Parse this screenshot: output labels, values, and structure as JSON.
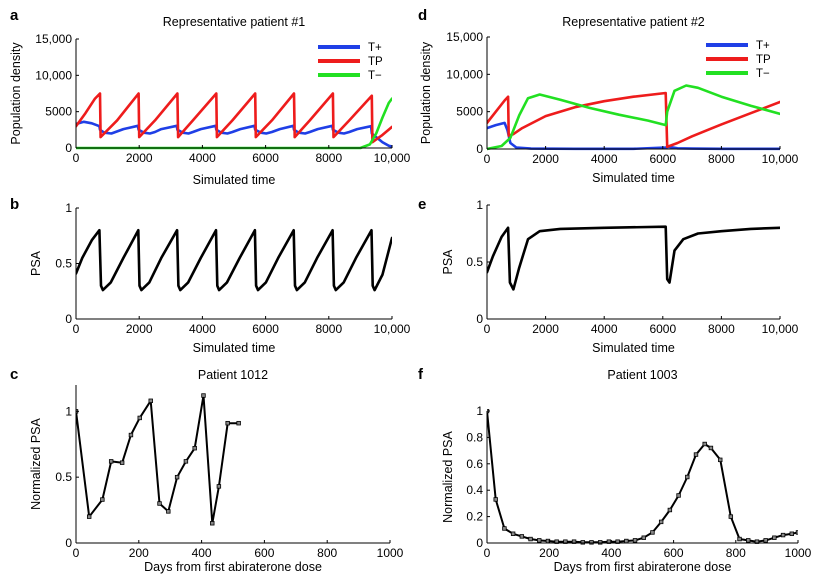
{
  "chart_data": [
    {
      "panel": "a",
      "type": "line",
      "title": "Representative patient #1",
      "xlabel": "Simulated time",
      "ylabel": "Population density",
      "xlim": [
        0,
        10000
      ],
      "ylim": [
        0,
        15000
      ],
      "xticks": [
        0,
        2000,
        4000,
        6000,
        8000,
        10000
      ],
      "xtick_labels": [
        "0",
        "2000",
        "4000",
        "6000",
        "8000",
        "10,000"
      ],
      "yticks": [
        0,
        5000,
        10000,
        15000
      ],
      "ytick_labels": [
        "0",
        "5000",
        "10,000",
        "15,000"
      ],
      "legend": "top-right",
      "series": [
        {
          "name": "T+",
          "color": "#1f3fe6",
          "x": [
            0,
            250,
            500,
            740,
            760,
            900,
            1120,
            1250,
            1500,
            1960,
            1980,
            2150,
            2340,
            2500,
            2700,
            3190,
            3210,
            3380,
            3560,
            3700,
            3950,
            4420,
            4440,
            4600,
            4790,
            4950,
            5200,
            5650,
            5670,
            5850,
            6020,
            6200,
            6450,
            6880,
            6900,
            7050,
            7250,
            7400,
            7650,
            8110,
            8130,
            8300,
            8480,
            8650,
            8900,
            9340,
            9360,
            9500,
            9700,
            9900,
            10000
          ],
          "y": [
            3300,
            3600,
            3400,
            3000,
            2500,
            2100,
            2000,
            2200,
            2600,
            3050,
            2500,
            2100,
            2000,
            2200,
            2600,
            3050,
            2500,
            2100,
            2000,
            2200,
            2600,
            3050,
            2500,
            2100,
            2000,
            2200,
            2600,
            3050,
            2500,
            2100,
            2000,
            2200,
            2600,
            3050,
            2500,
            2100,
            2000,
            2200,
            2600,
            3050,
            2500,
            2100,
            2000,
            2200,
            2600,
            3000,
            2000,
            1500,
            800,
            300,
            200
          ]
        },
        {
          "name": "TP",
          "color": "#ee1c1c",
          "x": [
            0,
            300,
            600,
            760,
            780,
            1300,
            1980,
            2000,
            2500,
            3210,
            3230,
            3700,
            4440,
            4460,
            4950,
            5670,
            5690,
            6200,
            6900,
            6920,
            7400,
            8130,
            8150,
            8650,
            9360,
            9380,
            9700,
            10000
          ],
          "y": [
            3000,
            4800,
            6800,
            7500,
            1500,
            3800,
            7500,
            1500,
            3800,
            7500,
            1500,
            3800,
            7500,
            1500,
            3800,
            7500,
            1500,
            3800,
            7500,
            1500,
            3800,
            7500,
            1500,
            3800,
            7200,
            800,
            1800,
            2900
          ]
        },
        {
          "name": "T−",
          "color": "#22e022",
          "x": [
            0,
            9000,
            9300,
            9500,
            9700,
            9900,
            10000
          ],
          "y": [
            0,
            0,
            500,
            2000,
            4200,
            6200,
            6800
          ]
        }
      ]
    },
    {
      "panel": "d",
      "type": "line",
      "title": "Representative patient #2",
      "xlabel": "Simulated time",
      "ylabel": "Population density",
      "xlim": [
        0,
        10000
      ],
      "ylim": [
        0,
        15000
      ],
      "xticks": [
        0,
        2000,
        4000,
        6000,
        8000,
        10000
      ],
      "xtick_labels": [
        "0",
        "2000",
        "4000",
        "6000",
        "8000",
        "10,000"
      ],
      "yticks": [
        0,
        5000,
        10000,
        15000
      ],
      "ytick_labels": [
        "0",
        "5000",
        "10,000",
        "15,000"
      ],
      "legend": "top-right",
      "series": [
        {
          "name": "T+",
          "color": "#1f3fe6",
          "x": [
            0,
            300,
            600,
            700,
            800,
            1000,
            1500,
            3000,
            5000,
            6100,
            6200,
            6500,
            7000,
            8000,
            10000
          ],
          "y": [
            2800,
            3200,
            3500,
            2500,
            800,
            200,
            50,
            30,
            30,
            200,
            300,
            100,
            50,
            30,
            30
          ]
        },
        {
          "name": "TP",
          "color": "#ee1c1c",
          "x": [
            0,
            300,
            600,
            720,
            740,
            900,
            1200,
            2000,
            3000,
            4000,
            5000,
            6100,
            6150,
            6500,
            7000,
            8000,
            9000,
            10000
          ],
          "y": [
            3500,
            5000,
            6500,
            7000,
            1800,
            2000,
            2800,
            4400,
            5600,
            6400,
            7000,
            7500,
            300,
            800,
            1700,
            3300,
            4800,
            6300
          ]
        },
        {
          "name": "T−",
          "color": "#22e022",
          "x": [
            0,
            500,
            800,
            1100,
            1400,
            1800,
            2500,
            3500,
            4500,
            5500,
            6100,
            6150,
            6400,
            6800,
            7200,
            8000,
            9000,
            10000
          ],
          "y": [
            0,
            400,
            1500,
            4500,
            6800,
            7300,
            6600,
            5500,
            4600,
            3800,
            3200,
            5000,
            7800,
            8500,
            8200,
            7000,
            5800,
            4700
          ]
        }
      ]
    },
    {
      "panel": "b",
      "type": "line",
      "title": "",
      "xlabel": "Simulated time",
      "ylabel": "PSA",
      "xlim": [
        0,
        10000
      ],
      "ylim": [
        0,
        1
      ],
      "xticks": [
        0,
        2000,
        4000,
        6000,
        8000,
        10000
      ],
      "xtick_labels": [
        "0",
        "2000",
        "4000",
        "6000",
        "8000",
        "10,000"
      ],
      "yticks": [
        0,
        0.5,
        1
      ],
      "ytick_labels": [
        "0",
        "0.5",
        "1"
      ],
      "series": [
        {
          "name": "",
          "color": "#000000",
          "x": [
            0,
            200,
            500,
            740,
            790,
            850,
            1100,
            1500,
            1970,
            2010,
            2070,
            2320,
            2700,
            3200,
            3240,
            3300,
            3550,
            3950,
            4430,
            4470,
            4530,
            4780,
            5180,
            5660,
            5700,
            5760,
            6010,
            6400,
            6890,
            6930,
            6990,
            7240,
            7630,
            8120,
            8160,
            8220,
            8470,
            8860,
            9350,
            9390,
            9450,
            9700,
            10000
          ],
          "y": [
            0.41,
            0.55,
            0.71,
            0.8,
            0.3,
            0.26,
            0.33,
            0.55,
            0.8,
            0.3,
            0.26,
            0.33,
            0.55,
            0.8,
            0.3,
            0.26,
            0.33,
            0.55,
            0.8,
            0.3,
            0.26,
            0.33,
            0.55,
            0.8,
            0.3,
            0.26,
            0.33,
            0.55,
            0.8,
            0.3,
            0.26,
            0.33,
            0.55,
            0.8,
            0.3,
            0.26,
            0.33,
            0.55,
            0.8,
            0.3,
            0.26,
            0.4,
            0.73
          ]
        }
      ]
    },
    {
      "panel": "e",
      "type": "line",
      "title": "",
      "xlabel": "Simulated time",
      "ylabel": "PSA",
      "xlim": [
        0,
        10000
      ],
      "ylim": [
        0,
        1
      ],
      "xticks": [
        0,
        2000,
        4000,
        6000,
        8000,
        10000
      ],
      "xtick_labels": [
        "0",
        "2000",
        "4000",
        "6000",
        "8000",
        "10,000"
      ],
      "yticks": [
        0,
        0.5,
        1
      ],
      "ytick_labels": [
        "0",
        "0.5",
        "1"
      ],
      "series": [
        {
          "name": "",
          "color": "#000000",
          "x": [
            0,
            200,
            500,
            720,
            780,
            900,
            1100,
            1400,
            1800,
            2500,
            4000,
            6100,
            6150,
            6230,
            6400,
            6700,
            7200,
            8000,
            9000,
            10000
          ],
          "y": [
            0.41,
            0.55,
            0.72,
            0.8,
            0.32,
            0.26,
            0.45,
            0.7,
            0.77,
            0.79,
            0.8,
            0.81,
            0.35,
            0.32,
            0.6,
            0.7,
            0.75,
            0.77,
            0.79,
            0.8
          ]
        }
      ]
    },
    {
      "panel": "c",
      "type": "line",
      "title": "Patient 1012",
      "xlabel": "Days from first abiraterone dose",
      "ylabel": "Normalized PSA",
      "xlim": [
        0,
        1000
      ],
      "ylim": [
        0,
        1.2
      ],
      "xticks": [
        0,
        200,
        400,
        600,
        800,
        1000
      ],
      "xtick_labels": [
        "0",
        "200",
        "400",
        "600",
        "800",
        "1000"
      ],
      "yticks": [
        0,
        0.5,
        1
      ],
      "ytick_labels": [
        "0",
        "0.5",
        "1"
      ],
      "series": [
        {
          "name": "",
          "color": "#000000",
          "x": [
            0,
            42,
            84,
            112,
            147,
            175,
            203,
            238,
            266,
            294,
            322,
            350,
            378,
            406,
            434,
            455,
            483,
            518
          ],
          "y": [
            1.0,
            0.2,
            0.33,
            0.62,
            0.61,
            0.82,
            0.95,
            1.08,
            0.3,
            0.24,
            0.5,
            0.62,
            0.72,
            1.12,
            0.15,
            0.43,
            0.91,
            0.91
          ]
        }
      ]
    },
    {
      "panel": "f",
      "type": "line",
      "title": "Patient 1003",
      "xlabel": "Days from first abiraterone dose",
      "ylabel": "Normalized PSA",
      "xlim": [
        0,
        1000
      ],
      "ylim": [
        0,
        1
      ],
      "xticks": [
        0,
        200,
        400,
        600,
        800,
        1000
      ],
      "xtick_labels": [
        "0",
        "200",
        "400",
        "600",
        "800",
        "1000"
      ],
      "yticks": [
        0,
        0.2,
        0.4,
        0.6,
        0.8,
        1
      ],
      "ytick_labels": [
        "0",
        "0.2",
        "0.4",
        "0.6",
        "0.8",
        "1"
      ],
      "series": [
        {
          "name": "",
          "color": "#000000",
          "x": [
            0,
            28,
            56,
            84,
            112,
            140,
            168,
            196,
            224,
            252,
            280,
            308,
            336,
            364,
            392,
            420,
            448,
            476,
            504,
            532,
            560,
            588,
            616,
            644,
            672,
            700,
            720,
            750,
            784,
            812,
            840,
            868,
            896,
            924,
            952,
            980,
            1000
          ],
          "y": [
            1.0,
            0.33,
            0.11,
            0.07,
            0.05,
            0.03,
            0.02,
            0.015,
            0.01,
            0.01,
            0.01,
            0.005,
            0.005,
            0.005,
            0.01,
            0.01,
            0.015,
            0.02,
            0.04,
            0.08,
            0.16,
            0.25,
            0.36,
            0.5,
            0.67,
            0.75,
            0.72,
            0.63,
            0.2,
            0.03,
            0.02,
            0.01,
            0.02,
            0.04,
            0.06,
            0.07,
            0.08
          ]
        }
      ]
    }
  ]
}
